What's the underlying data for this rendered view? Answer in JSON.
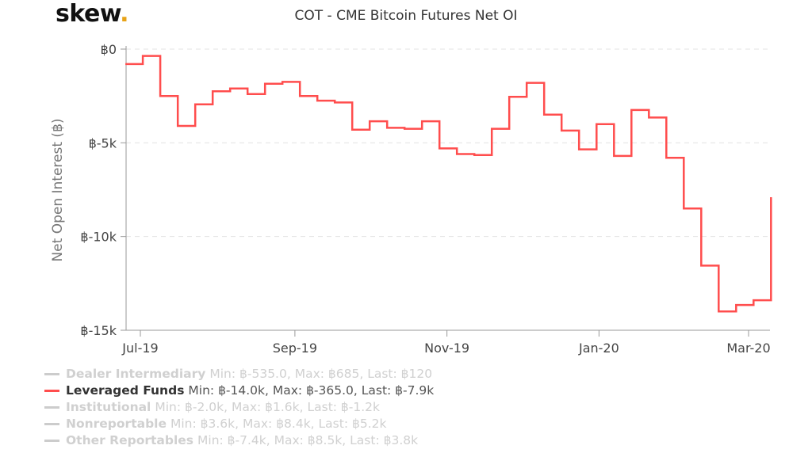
{
  "logo": {
    "text": "skew",
    "dot": "."
  },
  "chart_data": {
    "type": "line",
    "step": true,
    "title": "COT - CME Bitcoin Futures Net OI",
    "ylabel": "Net Open Interest (฿)",
    "xlabel": "",
    "ylim": [
      -15000,
      0
    ],
    "yticks": [
      0,
      -5000,
      -10000,
      -15000
    ],
    "ytick_labels": [
      "฿0",
      "฿-5k",
      "฿-10k",
      "฿-15k"
    ],
    "xticks": [
      "2019-07-01",
      "2019-09-01",
      "2019-11-01",
      "2020-01-01",
      "2020-03-01"
    ],
    "xtick_labels": [
      "Jul-19",
      "Sep-19",
      "Nov-19",
      "Jan-20",
      "Mar-20"
    ],
    "grid": true,
    "legend_placement": "bottom-left",
    "series": [
      {
        "name": "Leveraged Funds",
        "color": "#ff4d4d",
        "start_date": "2019-06-25",
        "interval": "weekly",
        "values": [
          -800,
          -365,
          -2500,
          -4100,
          -2950,
          -2250,
          -2100,
          -2400,
          -1850,
          -1750,
          -2500,
          -2750,
          -2850,
          -4300,
          -3850,
          -4200,
          -4250,
          -3850,
          -5300,
          -5600,
          -5650,
          -4250,
          -2550,
          -1800,
          -3500,
          -4350,
          -5350,
          -4000,
          -5700,
          -3250,
          -3650,
          -5800,
          -8500,
          -11550,
          -14000,
          -13650,
          -13400,
          -7900
        ]
      }
    ],
    "legend": [
      {
        "name": "Dealer Intermediary",
        "stats": "Min: ฿-535.0, Max: ฿685, Last: ฿120",
        "active": false
      },
      {
        "name": "Leveraged Funds",
        "stats": "Min: ฿-14.0k, Max: ฿-365.0, Last: ฿-7.9k",
        "active": true
      },
      {
        "name": "Institutional",
        "stats": "Min: ฿-2.0k, Max: ฿1.6k, Last: ฿-1.2k",
        "active": false
      },
      {
        "name": "Nonreportable",
        "stats": "Min: ฿3.6k, Max: ฿8.4k, Last: ฿5.2k",
        "active": false
      },
      {
        "name": "Other Reportables",
        "stats": "Min: ฿-7.4k, Max: ฿8.5k, Last: ฿3.8k",
        "active": false
      }
    ]
  }
}
